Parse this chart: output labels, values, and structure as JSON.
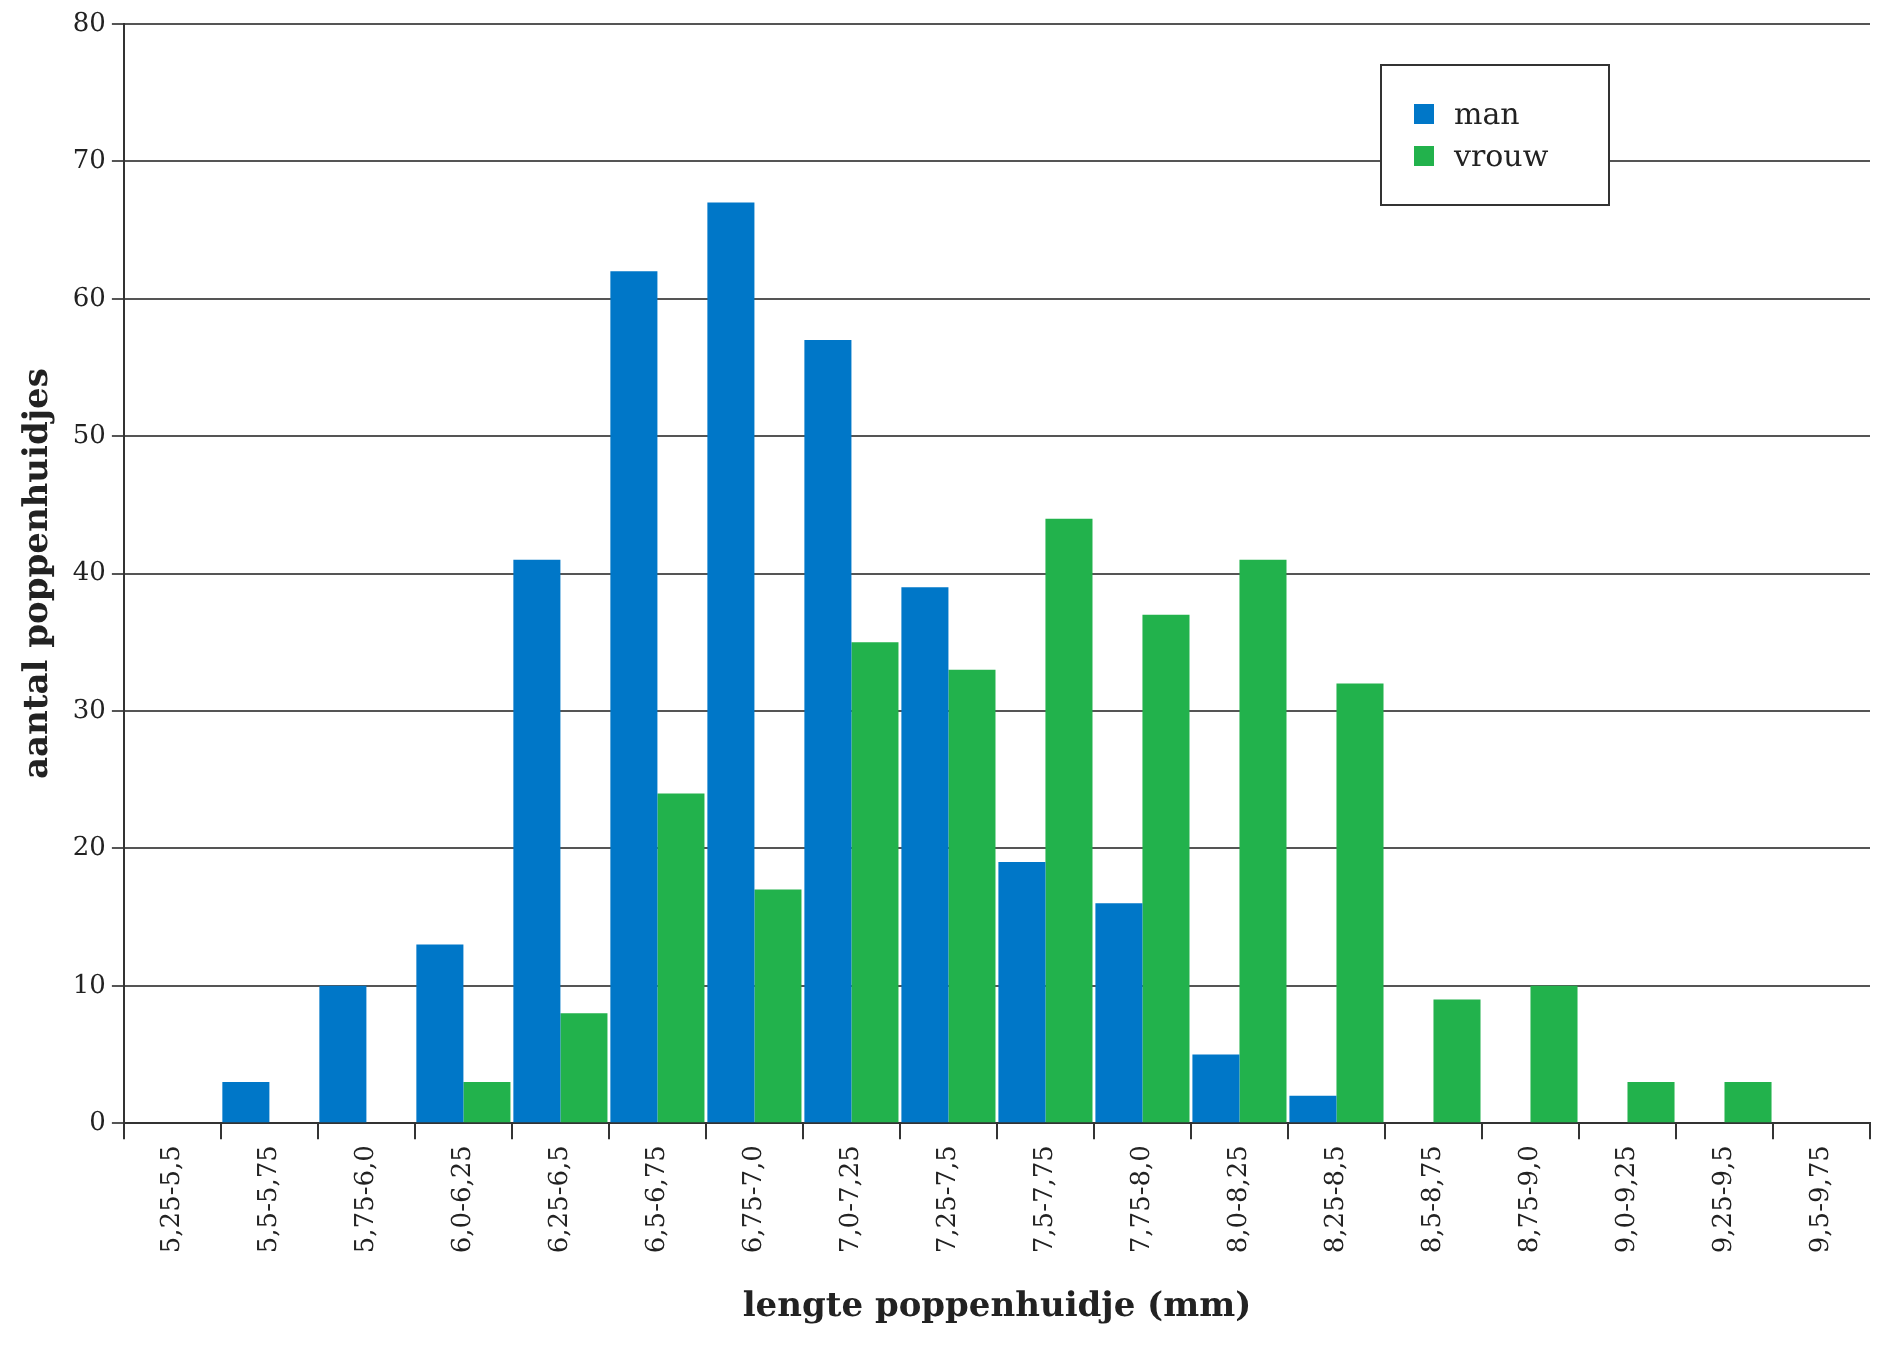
{
  "chart_data": {
    "type": "bar",
    "xlabel": "lengte poppenhuidje (mm)",
    "ylabel": "aantal poppenhuidjes",
    "categories": [
      "5,25-5,5",
      "5,5-5,75",
      "5,75-6,0",
      "6,0-6,25",
      "6,25-6,5",
      "6,5-6,75",
      "6,75-7,0",
      "7,0-7,25",
      "7,25-7,5",
      "7,5-7,75",
      "7,75-8,0",
      "8,0-8,25",
      "8,25-8,5",
      "8,5-8,75",
      "8,75-9,0",
      "9,0-9,25",
      "9,25-9,5",
      "9,5-9,75"
    ],
    "series": [
      {
        "name": "man",
        "color": "#0077c8",
        "values": [
          0,
          3,
          10,
          13,
          41,
          62,
          67,
          57,
          39,
          19,
          16,
          5,
          2,
          0,
          0,
          0,
          0,
          0
        ]
      },
      {
        "name": "vrouw",
        "color": "#22b24c",
        "values": [
          0,
          0,
          0,
          3,
          8,
          24,
          17,
          35,
          33,
          44,
          37,
          41,
          32,
          9,
          10,
          3,
          3,
          0
        ]
      }
    ],
    "ylim": [
      0,
      80
    ],
    "yticks": [
      0,
      10,
      20,
      30,
      40,
      50,
      60,
      70,
      80
    ],
    "grid": "y",
    "legend": "top right"
  }
}
